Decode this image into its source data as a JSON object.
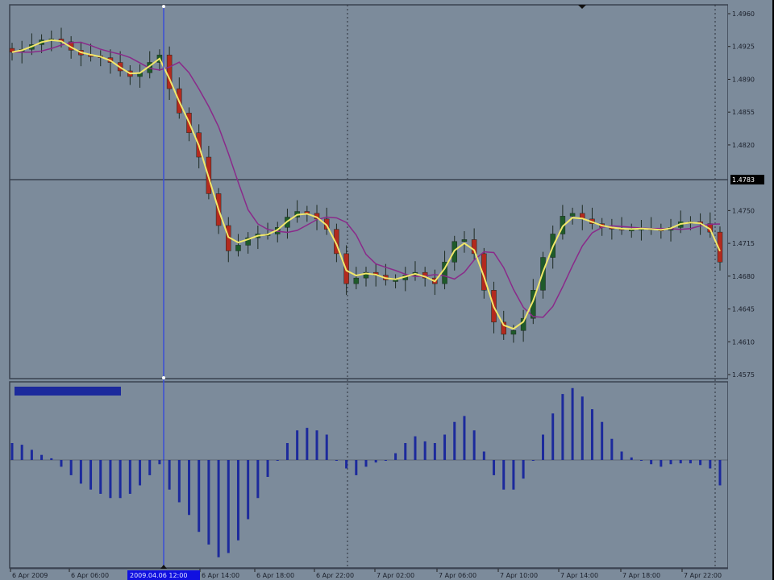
{
  "chart_data": {
    "type": "candlestick",
    "title": "",
    "price_axis": {
      "ticks": [
        "1.4960",
        "1.4925",
        "1.4890",
        "1.4855",
        "1.4820",
        "1.4750",
        "1.4715",
        "1.4680",
        "1.4645",
        "1.4610",
        "1.4575"
      ],
      "ylim": [
        1.4575,
        1.496
      ],
      "current_price_label": "1.4783"
    },
    "time_axis": {
      "ticks": [
        "6 Apr 2009",
        "6 Apr 06:00",
        "6 Apr 14:00",
        "6 Apr 18:00",
        "6 Apr 22:00",
        "7 Apr 02:00",
        "7 Apr 06:00",
        "7 Apr 10:00",
        "7 Apr 14:00",
        "7 Apr 18:00",
        "7 Apr 22:00"
      ],
      "crosshair_label": "2009.04.06 12:00"
    },
    "closes": [
      1.4919,
      1.4922,
      1.4927,
      1.4932,
      1.4933,
      1.493,
      1.4921,
      1.4916,
      1.4915,
      1.4913,
      1.4908,
      1.4899,
      1.4893,
      1.4897,
      1.4908,
      1.4916,
      1.488,
      1.4854,
      1.4833,
      1.4807,
      1.4768,
      1.4734,
      1.4707,
      1.4713,
      1.4721,
      1.4725,
      1.4725,
      1.4732,
      1.4743,
      1.4749,
      1.4747,
      1.4741,
      1.473,
      1.4704,
      1.4672,
      1.4678,
      1.4684,
      1.4681,
      1.4676,
      1.4676,
      1.4681,
      1.4684,
      1.4678,
      1.4672,
      1.4695,
      1.4717,
      1.4719,
      1.4704,
      1.4665,
      1.4631,
      1.4618,
      1.4622,
      1.4635,
      1.4665,
      1.47,
      1.4725,
      1.4744,
      1.4747,
      1.4741,
      1.4736,
      1.4732,
      1.4731,
      1.473,
      1.473,
      1.4731,
      1.473,
      1.4729,
      1.4732,
      1.4738,
      1.4738,
      1.4736,
      1.4727,
      1.4695
    ],
    "histogram": [
      20,
      18,
      12,
      6,
      2,
      -8,
      -18,
      -28,
      -35,
      -40,
      -45,
      -45,
      -40,
      -30,
      -18,
      -5,
      -35,
      -50,
      -65,
      -85,
      -100,
      -115,
      -110,
      -95,
      -70,
      -45,
      -20,
      0,
      20,
      35,
      38,
      35,
      30,
      0,
      -10,
      -18,
      -8,
      -3,
      0,
      8,
      20,
      28,
      22,
      20,
      30,
      45,
      52,
      35,
      10,
      -18,
      -35,
      -35,
      -22,
      0,
      30,
      55,
      78,
      85,
      75,
      60,
      45,
      25,
      10,
      3,
      0,
      -5,
      -8,
      -5,
      -4,
      -4,
      -6,
      -10,
      -30
    ],
    "moving_averages": [
      {
        "color": "#f2e86a"
      },
      {
        "color": "#8a2a8a"
      }
    ],
    "colors": {
      "background": "#7c8b9b",
      "bull_candle": "#1f5a2a",
      "bear_candle": "#b32a1e",
      "histogram": "#1c2a9c",
      "crosshair": "#3b4fd6",
      "highlight": "#1010e0"
    },
    "grid": false
  }
}
